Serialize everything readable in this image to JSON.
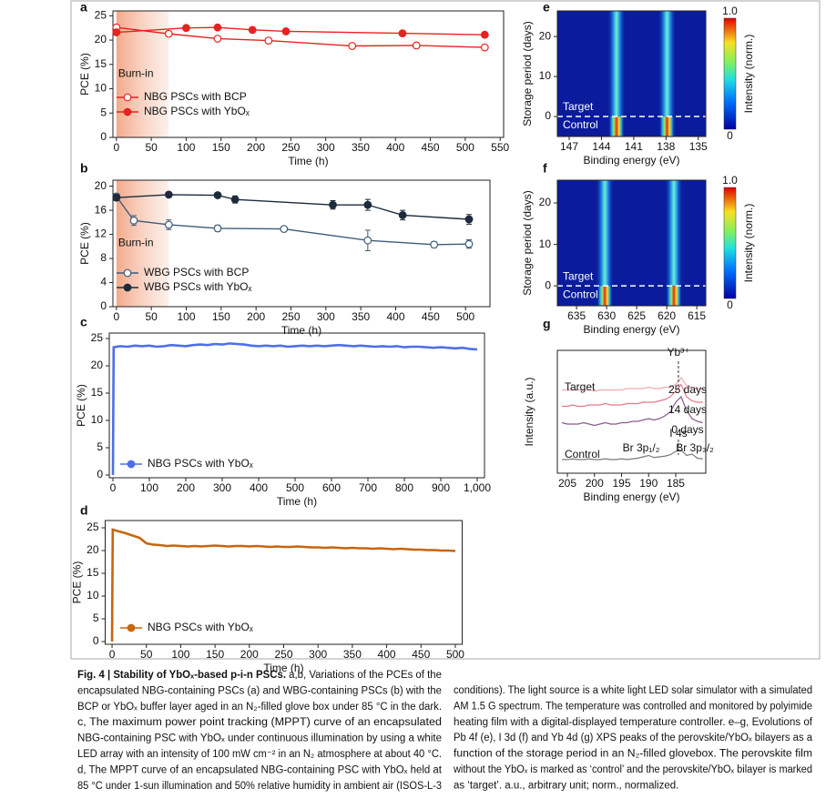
{
  "chart_data": [
    {
      "type": "line",
      "panel": "a",
      "xlabel": "Time (h)",
      "ylabel": "PCE (%)",
      "xlim": [
        -5,
        555
      ],
      "ylim": [
        0,
        26
      ],
      "xticks": [
        0,
        50,
        100,
        150,
        200,
        250,
        300,
        350,
        400,
        450,
        500,
        550
      ],
      "yticks": [
        0,
        5,
        10,
        15,
        20,
        25
      ],
      "highlight": {
        "label": "Burn-in",
        "range": [
          0,
          75
        ]
      },
      "series": [
        {
          "name": "NBG PSCs with BCP",
          "color": "#e8231f",
          "marker": "open",
          "x": [
            0,
            75,
            145,
            218,
            338,
            430,
            528
          ],
          "values": [
            22.6,
            21.3,
            20.3,
            19.9,
            18.8,
            18.9,
            18.5
          ]
        },
        {
          "name": "NBG PSCs with YbOₓ",
          "color": "#e8231f",
          "marker": "filled",
          "x": [
            0,
            100,
            145,
            195,
            243,
            410,
            528
          ],
          "values": [
            21.6,
            22.5,
            22.6,
            22.1,
            21.8,
            21.4,
            21.1
          ]
        }
      ]
    },
    {
      "type": "line",
      "panel": "b",
      "xlabel": "Time (h)",
      "ylabel": "PCE (%)",
      "xlim": [
        -5,
        535
      ],
      "ylim": [
        0,
        21
      ],
      "xticks": [
        0,
        50,
        100,
        150,
        200,
        250,
        300,
        350,
        400,
        450,
        500
      ],
      "yticks": [
        0,
        4,
        8,
        12,
        16,
        20
      ],
      "highlight": {
        "label": "Burn-in",
        "range": [
          0,
          75
        ]
      },
      "series": [
        {
          "name": "WBG PSCs with BCP",
          "color": "#3d5c7a",
          "marker": "open",
          "x": [
            0,
            25,
            75,
            145,
            240,
            360,
            455,
            505
          ],
          "values": [
            18.3,
            14.3,
            13.6,
            13.0,
            12.9,
            11.0,
            10.3,
            10.4
          ],
          "errors": [
            0.5,
            0.8,
            0.8,
            0.5,
            0.3,
            1.7,
            0.5,
            0.7
          ]
        },
        {
          "name": "WBG PSCs with YbOₓ",
          "color": "#1d2b3c",
          "marker": "filled",
          "x": [
            0,
            75,
            145,
            170,
            310,
            360,
            410,
            505
          ],
          "values": [
            18.1,
            18.6,
            18.5,
            17.8,
            16.9,
            16.9,
            15.2,
            14.5
          ],
          "errors": [
            0.5,
            0.4,
            0.3,
            0.6,
            0.7,
            0.9,
            0.8,
            0.8
          ]
        }
      ]
    },
    {
      "type": "line",
      "panel": "c",
      "xlabel": "Time (h)",
      "ylabel": "PCE (%)",
      "xlim": [
        -10,
        1020
      ],
      "ylim": [
        -0.5,
        26
      ],
      "xticks": [
        0,
        100,
        200,
        300,
        400,
        500,
        600,
        700,
        800,
        900,
        {
          "value": 1000,
          "label": "1,000"
        }
      ],
      "yticks": [
        0,
        5,
        10,
        15,
        20,
        25
      ],
      "x": [
        0,
        2,
        20,
        40,
        60,
        80,
        100,
        120,
        140,
        160,
        180,
        200,
        220,
        240,
        260,
        280,
        300,
        320,
        340,
        360,
        380,
        400,
        420,
        440,
        460,
        480,
        500,
        520,
        540,
        560,
        580,
        600,
        620,
        640,
        660,
        680,
        700,
        720,
        740,
        760,
        780,
        800,
        820,
        840,
        860,
        880,
        900,
        920,
        940,
        960,
        980,
        1000
      ],
      "series": [
        {
          "name": "NBG PSCs with YbOₓ",
          "color": "#4f6fe8",
          "marker": "none",
          "values": [
            0,
            23.4,
            23.6,
            23.5,
            23.7,
            23.6,
            23.7,
            23.5,
            23.6,
            23.8,
            23.7,
            23.6,
            23.8,
            23.9,
            23.8,
            24.0,
            23.9,
            24.1,
            24.0,
            23.9,
            23.7,
            23.6,
            23.7,
            23.6,
            23.7,
            23.5,
            23.6,
            23.7,
            23.6,
            23.7,
            23.6,
            23.7,
            23.8,
            23.7,
            23.6,
            23.7,
            23.6,
            23.5,
            23.6,
            23.5,
            23.6,
            23.4,
            23.5,
            23.5,
            23.4,
            23.3,
            23.4,
            23.3,
            23.2,
            23.3,
            23.1,
            23.0
          ]
        }
      ]
    },
    {
      "type": "line",
      "panel": "d",
      "xlabel": "Time (h)",
      "ylabel": "PCE (%)",
      "xlim": [
        -10,
        510
      ],
      "ylim": [
        -0.6,
        26.6
      ],
      "xticks": [
        0,
        50,
        100,
        150,
        200,
        250,
        300,
        350,
        400,
        450,
        500
      ],
      "yticks": [
        0,
        5,
        10,
        15,
        20,
        25
      ],
      "x": [
        0,
        1,
        10,
        20,
        30,
        40,
        50,
        60,
        70,
        80,
        90,
        100,
        110,
        120,
        130,
        140,
        150,
        160,
        170,
        180,
        190,
        200,
        210,
        220,
        230,
        240,
        250,
        260,
        270,
        280,
        290,
        300,
        310,
        320,
        330,
        340,
        350,
        360,
        370,
        380,
        390,
        400,
        410,
        420,
        430,
        440,
        450,
        460,
        470,
        480,
        490,
        500
      ],
      "series": [
        {
          "name": "NBG PSCs with YbOₓ",
          "color": "#c8650e",
          "marker": "none",
          "values": [
            0,
            24.6,
            24.2,
            23.8,
            23.3,
            22.8,
            21.6,
            21.3,
            21.2,
            21.0,
            21.1,
            21.0,
            20.9,
            21.0,
            20.9,
            21.0,
            21.1,
            21.0,
            20.9,
            21.0,
            21.0,
            20.9,
            21.0,
            20.9,
            20.8,
            20.9,
            20.8,
            20.8,
            20.9,
            20.8,
            20.7,
            20.7,
            20.6,
            20.7,
            20.6,
            20.5,
            20.6,
            20.5,
            20.5,
            20.4,
            20.5,
            20.4,
            20.3,
            20.4,
            20.3,
            20.2,
            20.2,
            20.1,
            20.1,
            20.0,
            20.0,
            19.9
          ]
        }
      ]
    },
    {
      "type": "heatmap",
      "panel": "e",
      "xlabel": "Binding energy (eV)",
      "ylabel": "Storage period (days)",
      "xlim": [
        148.1,
        134.3
      ],
      "ylim": [
        -5,
        26.4
      ],
      "xticks": [
        147,
        144,
        141,
        138,
        135
      ],
      "yticks": [
        0,
        10,
        20
      ],
      "peaks": [
        142.6,
        137.9
      ],
      "divider": 0,
      "above": "Target",
      "below": "Control",
      "colorbar": {
        "label": "Intensity (norm.)",
        "ticks": [
          {
            "value": 1,
            "label": "1.0"
          },
          0
        ]
      }
    },
    {
      "type": "heatmap",
      "panel": "f",
      "xlabel": "Binding energy (eV)",
      "ylabel": "Storage period (days)",
      "xlim": [
        638.2,
        613.5
      ],
      "ylim": [
        -4.8,
        25.5
      ],
      "xticks": [
        635,
        630,
        625,
        620,
        615
      ],
      "yticks": [
        0,
        10,
        20
      ],
      "peaks": [
        630.3,
        618.8
      ],
      "divider": 0,
      "above": "Target",
      "below": "Control",
      "colorbar": {
        "label": "Intensity (norm.)",
        "ticks": [
          {
            "value": 1,
            "label": "1.0"
          },
          0
        ]
      }
    },
    {
      "type": "line",
      "panel": "g",
      "xlabel": "Binding energy (eV)",
      "ylabel": "Intensity (a.u.)",
      "xlim": [
        206.85,
        179.45
      ],
      "ylim": [
        0,
        9
      ],
      "xticks": [
        205,
        200,
        195,
        190,
        185
      ],
      "peak_position": 184.5,
      "annotations": [
        "Target",
        "Yb³⁺",
        "Br 3p₁/₂",
        "I 4s",
        "Br 3p₃/₂"
      ],
      "x": [
        206,
        205,
        204,
        203,
        202,
        201,
        200,
        199,
        198,
        197,
        196,
        195,
        194,
        193,
        192,
        191,
        190,
        189,
        188,
        187,
        186,
        185,
        184,
        183,
        182,
        181,
        180
      ],
      "series": [
        {
          "name": "Control",
          "color": "#7a7a7a",
          "marker": "none",
          "values": [
            1.0,
            1.0,
            1.05,
            1.0,
            1.0,
            1.05,
            1.0,
            1.0,
            1.05,
            1.0,
            1.0,
            1.05,
            1.0,
            1.05,
            1.1,
            1.2,
            1.3,
            1.15,
            1.2,
            1.25,
            1.35,
            1.6,
            1.7,
            1.3,
            1.4,
            1.1,
            1.05
          ]
        },
        {
          "name": "0 days",
          "color": "#8a5a8c",
          "marker": "none",
          "values": [
            3.7,
            3.6,
            3.6,
            3.6,
            3.7,
            3.6,
            3.5,
            3.6,
            3.7,
            3.6,
            3.6,
            3.7,
            3.7,
            3.8,
            3.8,
            3.9,
            4.0,
            3.9,
            4.0,
            4.2,
            4.5,
            5.2,
            5.6,
            4.6,
            4.0,
            3.8,
            3.7
          ]
        },
        {
          "name": "14 days",
          "color": "#e07a8c",
          "marker": "none",
          "values": [
            4.9,
            4.9,
            5.0,
            4.9,
            4.9,
            5.0,
            5.0,
            5.0,
            5.1,
            5.0,
            5.0,
            5.0,
            5.1,
            5.1,
            5.1,
            5.2,
            5.2,
            5.2,
            5.3,
            5.4,
            5.6,
            6.0,
            6.5,
            5.6,
            5.3,
            5.2,
            5.2
          ]
        },
        {
          "name": "25 days",
          "color": "#f2a9b2",
          "marker": "none",
          "values": [
            6.1,
            6.1,
            6.1,
            6.1,
            6.1,
            6.1,
            6.0,
            6.1,
            6.1,
            6.1,
            6.1,
            6.1,
            6.2,
            6.2,
            6.2,
            6.2,
            6.3,
            6.2,
            6.2,
            6.3,
            6.3,
            6.5,
            7.0,
            6.4,
            6.3,
            6.2,
            6.2
          ]
        }
      ]
    }
  ],
  "caption": {
    "title": "Fig. 4 | Stability of YbOₓ-based p-i-n PSCs.",
    "left": [
      " a,b, Variations of the PCEs of the",
      "encapsulated NBG-containing PSCs (a) and WBG-containing PSCs (b) with the",
      "BCP or YbOₓ buffer layer aged in an N₂-filled glove box under 85 °C in the dark.",
      "c, The maximum power point tracking (MPPT) curve of an encapsulated",
      "NBG-containing PSC with YbOₓ under continuous illumination by using a white",
      "LED array with an intensity of 100 mW cm⁻² in an N₂ atmosphere at about 40 °C.",
      "d, The MPPT curve of an encapsulated NBG-containing PSC with YbOₓ held at",
      "85 °C under 1-sun illumination and 50% relative humidity in ambient air (ISOS-L-3"
    ],
    "right": [
      "conditions). The light source is a white light LED solar simulator with a simulated",
      "AM 1.5 G spectrum. The temperature was controlled and monitored by polyimide",
      "heating film with a digital-displayed temperature controller. e–g, Evolutions of",
      "Pb 4f (e), I 3d (f) and Yb 4d (g) XPS peaks of the perovskite/YbOₓ bilayers as a",
      "function of the storage period in an N₂-filled glovebox. The perovskite film",
      "without the YbOₓ is marked as ‘control’ and the perovskite/YbOₓ bilayer is marked",
      "as ‘target’. a.u., arbitrary unit; norm., normalized."
    ]
  }
}
